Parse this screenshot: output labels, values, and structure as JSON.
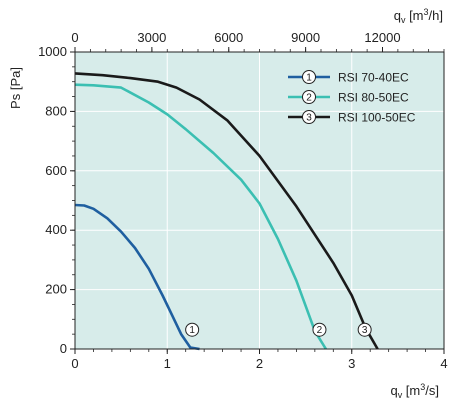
{
  "chart_data": {
    "type": "line",
    "xlabel_bottom": "qv [m³/s]",
    "xlabel_top": "qv [m³/h]",
    "ylabel": "Ps [Pa]",
    "xlim": [
      0,
      4
    ],
    "ylim": [
      0,
      1000
    ],
    "x_ticks": [
      0,
      1,
      2,
      3,
      4
    ],
    "x_top_ticks": [
      0,
      3000,
      6000,
      9000,
      12000
    ],
    "y_ticks": [
      0,
      200,
      400,
      600,
      800,
      1000
    ],
    "grid": true,
    "legend_position": "top-right",
    "colors": {
      "background": "#d7ecea",
      "grid": "#ffffff",
      "axis": "#222222"
    },
    "series": [
      {
        "name": "RSI 70-40EC",
        "marker": "1",
        "color": "#1f5fa0",
        "x": [
          0,
          0.1,
          0.2,
          0.35,
          0.5,
          0.65,
          0.8,
          0.95,
          1.05,
          1.15,
          1.25,
          1.35
        ],
        "y": [
          485,
          483,
          472,
          440,
          395,
          340,
          270,
          180,
          115,
          50,
          5,
          0
        ]
      },
      {
        "name": "RSI 80-50EC",
        "marker": "2",
        "color": "#3bbfb2",
        "x": [
          0,
          0.2,
          0.5,
          0.8,
          1.0,
          1.2,
          1.5,
          1.8,
          2.0,
          2.2,
          2.4,
          2.6,
          2.72
        ],
        "y": [
          890,
          888,
          880,
          830,
          790,
          740,
          660,
          570,
          490,
          370,
          230,
          60,
          0
        ]
      },
      {
        "name": "RSI 100-50EC",
        "marker": "3",
        "color": "#1a1a1a",
        "x": [
          0,
          0.3,
          0.6,
          0.9,
          1.1,
          1.35,
          1.65,
          2.0,
          2.4,
          2.8,
          3.0,
          3.15,
          3.28
        ],
        "y": [
          928,
          922,
          912,
          900,
          880,
          840,
          770,
          650,
          480,
          290,
          180,
          70,
          0
        ]
      }
    ],
    "markers_on_curves": [
      {
        "label": "1",
        "x": 1.27,
        "y": 65
      },
      {
        "label": "2",
        "x": 2.65,
        "y": 65
      },
      {
        "label": "3",
        "x": 3.14,
        "y": 65
      }
    ]
  }
}
